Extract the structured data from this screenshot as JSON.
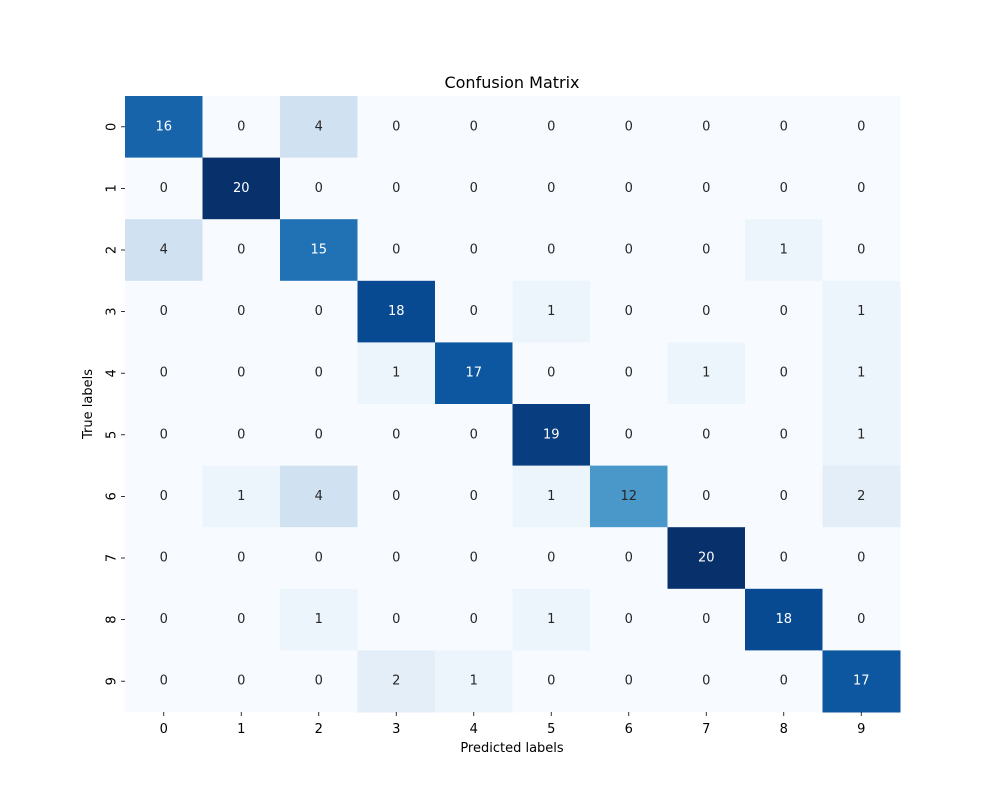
{
  "chart_data": {
    "type": "heatmap",
    "title": "Confusion Matrix",
    "xlabel": "Predicted labels",
    "ylabel": "True labels",
    "x_categories": [
      "0",
      "1",
      "2",
      "3",
      "4",
      "5",
      "6",
      "7",
      "8",
      "9"
    ],
    "y_categories": [
      "0",
      "1",
      "2",
      "3",
      "4",
      "5",
      "6",
      "7",
      "8",
      "9"
    ],
    "values": [
      [
        16,
        0,
        4,
        0,
        0,
        0,
        0,
        0,
        0,
        0
      ],
      [
        0,
        20,
        0,
        0,
        0,
        0,
        0,
        0,
        0,
        0
      ],
      [
        4,
        0,
        15,
        0,
        0,
        0,
        0,
        0,
        1,
        0
      ],
      [
        0,
        0,
        0,
        18,
        0,
        1,
        0,
        0,
        0,
        1
      ],
      [
        0,
        0,
        0,
        1,
        17,
        0,
        0,
        1,
        0,
        1
      ],
      [
        0,
        0,
        0,
        0,
        0,
        19,
        0,
        0,
        0,
        1
      ],
      [
        0,
        1,
        4,
        0,
        0,
        1,
        12,
        0,
        0,
        2
      ],
      [
        0,
        0,
        0,
        0,
        0,
        0,
        0,
        20,
        0,
        0
      ],
      [
        0,
        0,
        1,
        0,
        0,
        1,
        0,
        0,
        18,
        0
      ],
      [
        0,
        0,
        0,
        2,
        1,
        0,
        0,
        0,
        0,
        17
      ]
    ],
    "value_range": [
      0,
      20
    ],
    "colormap": "Blues",
    "colorbar": false,
    "grid": false
  }
}
